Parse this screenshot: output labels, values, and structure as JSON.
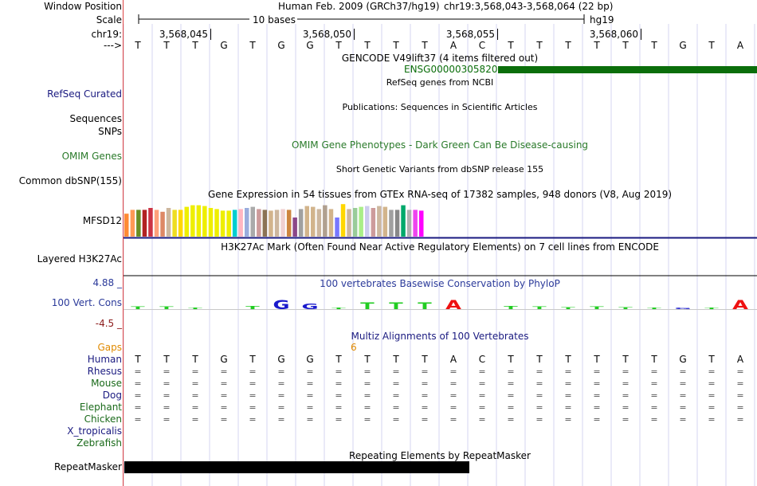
{
  "header": {
    "window_position_label": "Window Position",
    "assembly_text": "Human Feb. 2009 (GRCh37/hg19)",
    "position_text": "chr19:3,568,043-3,568,064 (22 bp)",
    "scale_label": "Scale",
    "scale_text": "10 bases",
    "scale_db": "hg19",
    "chrom_label": "chr19:",
    "positions": [
      "3,568,045",
      "3,568,050",
      "3,568,055",
      "3,568,060"
    ],
    "strand_label": "--->",
    "bases": [
      "T",
      "T",
      "T",
      "G",
      "T",
      "G",
      "G",
      "T",
      "T",
      "T",
      "T",
      "A",
      "C",
      "T",
      "T",
      "T",
      "T",
      "T",
      "T",
      "G",
      "T",
      "A"
    ]
  },
  "tracks": {
    "gencode": {
      "title": "GENCODE V49lift37 (4 items filtered out)",
      "gene": "ENSG00000305820",
      "color": "#0b6e0b"
    },
    "refseq": {
      "label": "RefSeq Curated",
      "title": "RefSeq genes from NCBI",
      "label_color": "#1a1a80"
    },
    "publications": {
      "title": "Publications: Sequences in Scientific Articles",
      "label": "Sequences"
    },
    "snps": {
      "label": "SNPs"
    },
    "omim": {
      "label": "OMIM Genes",
      "title": "OMIM Gene Phenotypes - Dark Green Can Be Disease-causing",
      "color": "#2a7a2a"
    },
    "dbsnp": {
      "title": "Short Genetic Variants from dbSNP release 155",
      "label": "Common dbSNP(155)"
    },
    "gtex": {
      "title": "Gene Expression in 54 tissues from GTEx RNA-seq of 17382 samples, 948 donors (V8, Aug 2019)",
      "label": "MFSD12",
      "bar_colors": [
        "#ff8a33",
        "#ff9955",
        "#6b8e23",
        "#b22222",
        "#cc3344",
        "#ffa07a",
        "#dd8866",
        "#cdb79e",
        "#eedd22",
        "#ffd700",
        "#eeee00",
        "#eeee00",
        "#eeee00",
        "#eeee00",
        "#eeee00",
        "#eeee00",
        "#eeee00",
        "#eeee00",
        "#00ced1",
        "#ffb6c1",
        "#9aaddd",
        "#aaaaaa",
        "#cd9b9b",
        "#8b7355",
        "#d2b48c",
        "#cdb79e",
        "#f0d0d0",
        "#cd853f",
        "#8b4789",
        "#a0a0a0",
        "#d2b48c",
        "#d2b48c",
        "#cdb79e",
        "#b0a090",
        "#d2b48c",
        "#7777ff",
        "#ffd700",
        "#cdb79e",
        "#99cc99",
        "#aaee88",
        "#ccccee",
        "#cd9b9b",
        "#cdb79e",
        "#d2b48c",
        "#a0a0a0",
        "#888888",
        "#00a86b",
        "#b0b0b0",
        "#ee44ee",
        "#ff00ff"
      ],
      "bar_values": [
        0.6,
        0.7,
        0.7,
        0.7,
        0.75,
        0.7,
        0.65,
        0.75,
        0.7,
        0.7,
        0.78,
        0.82,
        0.82,
        0.8,
        0.75,
        0.72,
        0.68,
        0.68,
        0.7,
        0.72,
        0.75,
        0.78,
        0.72,
        0.7,
        0.68,
        0.7,
        0.72,
        0.7,
        0.5,
        0.72,
        0.8,
        0.78,
        0.72,
        0.82,
        0.72,
        0.5,
        0.85,
        0.72,
        0.75,
        0.78,
        0.8,
        0.75,
        0.8,
        0.78,
        0.7,
        0.7,
        0.82,
        0.7,
        0.7,
        0.68
      ],
      "rule_color": "#1a1a80"
    },
    "h3k27ac": {
      "title": "H3K27Ac Mark (Often Found Near Active Regulatory Elements) on 7 cell lines from ENCODE",
      "label": "Layered H3K27Ac"
    },
    "phylop": {
      "title": "100 vertebrates Basewise Conservation by PhyloP",
      "label": "100 Vert. Cons",
      "max_label": "4.88 _",
      "min_label": "-4.5 _",
      "color": "#2b3a9a",
      "min_color": "#8b1a1a",
      "letter_colors": {
        "T": "#22cc22",
        "G": "#1a1acc",
        "A": "#ee1111",
        "C": "#2222cc"
      }
    },
    "multiz": {
      "title": "Multiz Alignments of 100 Vertebrates",
      "title_color": "#1a1a80",
      "gaps_label": "Gaps",
      "gaps_value": "6",
      "gaps_color": "#e08a00",
      "species": [
        {
          "name": "Human",
          "color": "#1a1a80"
        },
        {
          "name": "Rhesus",
          "color": "#1a1a80"
        },
        {
          "name": "Mouse",
          "color": "#1a6a1a"
        },
        {
          "name": "Dog",
          "color": "#1a1a80"
        },
        {
          "name": "Elephant",
          "color": "#1a6a1a"
        },
        {
          "name": "Chicken",
          "color": "#1a6a1a"
        },
        {
          "name": "X_tropicalis",
          "color": "#1a1a80"
        },
        {
          "name": "Zebrafish",
          "color": "#1a6a1a"
        }
      ],
      "match_symbol": "="
    },
    "repeatmasker": {
      "title": "Repeating Elements by RepeatMasker",
      "label": "RepeatMasker"
    }
  }
}
